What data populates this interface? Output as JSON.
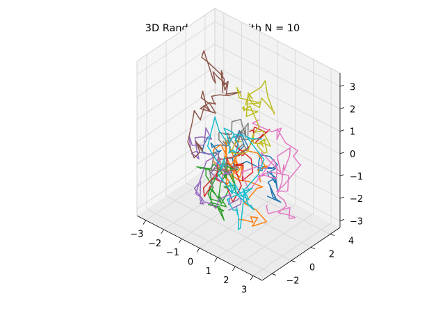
{
  "chart_data": {
    "type": "line3d",
    "title": "3D Random Walks with N = 10",
    "xlabel": "",
    "ylabel": "",
    "zlabel": "",
    "xlim": [
      -3.5,
      3.5
    ],
    "ylim": [
      -3.0,
      5.0
    ],
    "zlim": [
      -3.3,
      3.6
    ],
    "xticks": [
      -3,
      -2,
      -1,
      0,
      1,
      2,
      3
    ],
    "yticks": [
      -2,
      0,
      2,
      4
    ],
    "zticks": [
      -3,
      -2,
      -1,
      0,
      1,
      2,
      3
    ],
    "xtick_labels": [
      "−3",
      "−2",
      "−1",
      "0",
      "1",
      "2",
      "3"
    ],
    "ytick_labels": [
      "−2",
      "0",
      "2",
      "4"
    ],
    "ztick_labels": [
      "−3",
      "−2",
      "−1",
      "0",
      "1",
      "2",
      "3"
    ],
    "grid": true,
    "legend": "none",
    "num_walks": 10,
    "colors": [
      "#1f77b4",
      "#ff7f0e",
      "#2ca02c",
      "#d62728",
      "#9467bd",
      "#8c564b",
      "#e377c2",
      "#7f7f7f",
      "#bcbd22",
      "#17becf"
    ],
    "walk_shapes": [
      {
        "start": [
          1.6,
          1.0,
          -1.5
        ],
        "spread": 1.0
      },
      {
        "start": [
          0.4,
          0.2,
          -2.8
        ],
        "spread": 1.3
      },
      {
        "start": [
          -1.3,
          -0.6,
          -1.0
        ],
        "spread": 1.0
      },
      {
        "start": [
          -0.6,
          -0.8,
          -1.4
        ],
        "spread": 0.9
      },
      {
        "start": [
          0.2,
          -0.4,
          -2.3
        ],
        "spread": 0.9
      },
      {
        "start": [
          -2.0,
          1.0,
          -0.9
        ],
        "spread": 1.0
      },
      {
        "start": [
          0.4,
          2.4,
          1.0
        ],
        "spread": 1.1
      },
      {
        "start": [
          -0.6,
          0.5,
          0.2
        ],
        "spread": 1.0
      },
      {
        "start": [
          0.0,
          1.3,
          2.2
        ],
        "spread": 0.9
      },
      {
        "start": [
          0.6,
          1.4,
          0.5
        ],
        "spread": 1.0
      }
    ]
  }
}
